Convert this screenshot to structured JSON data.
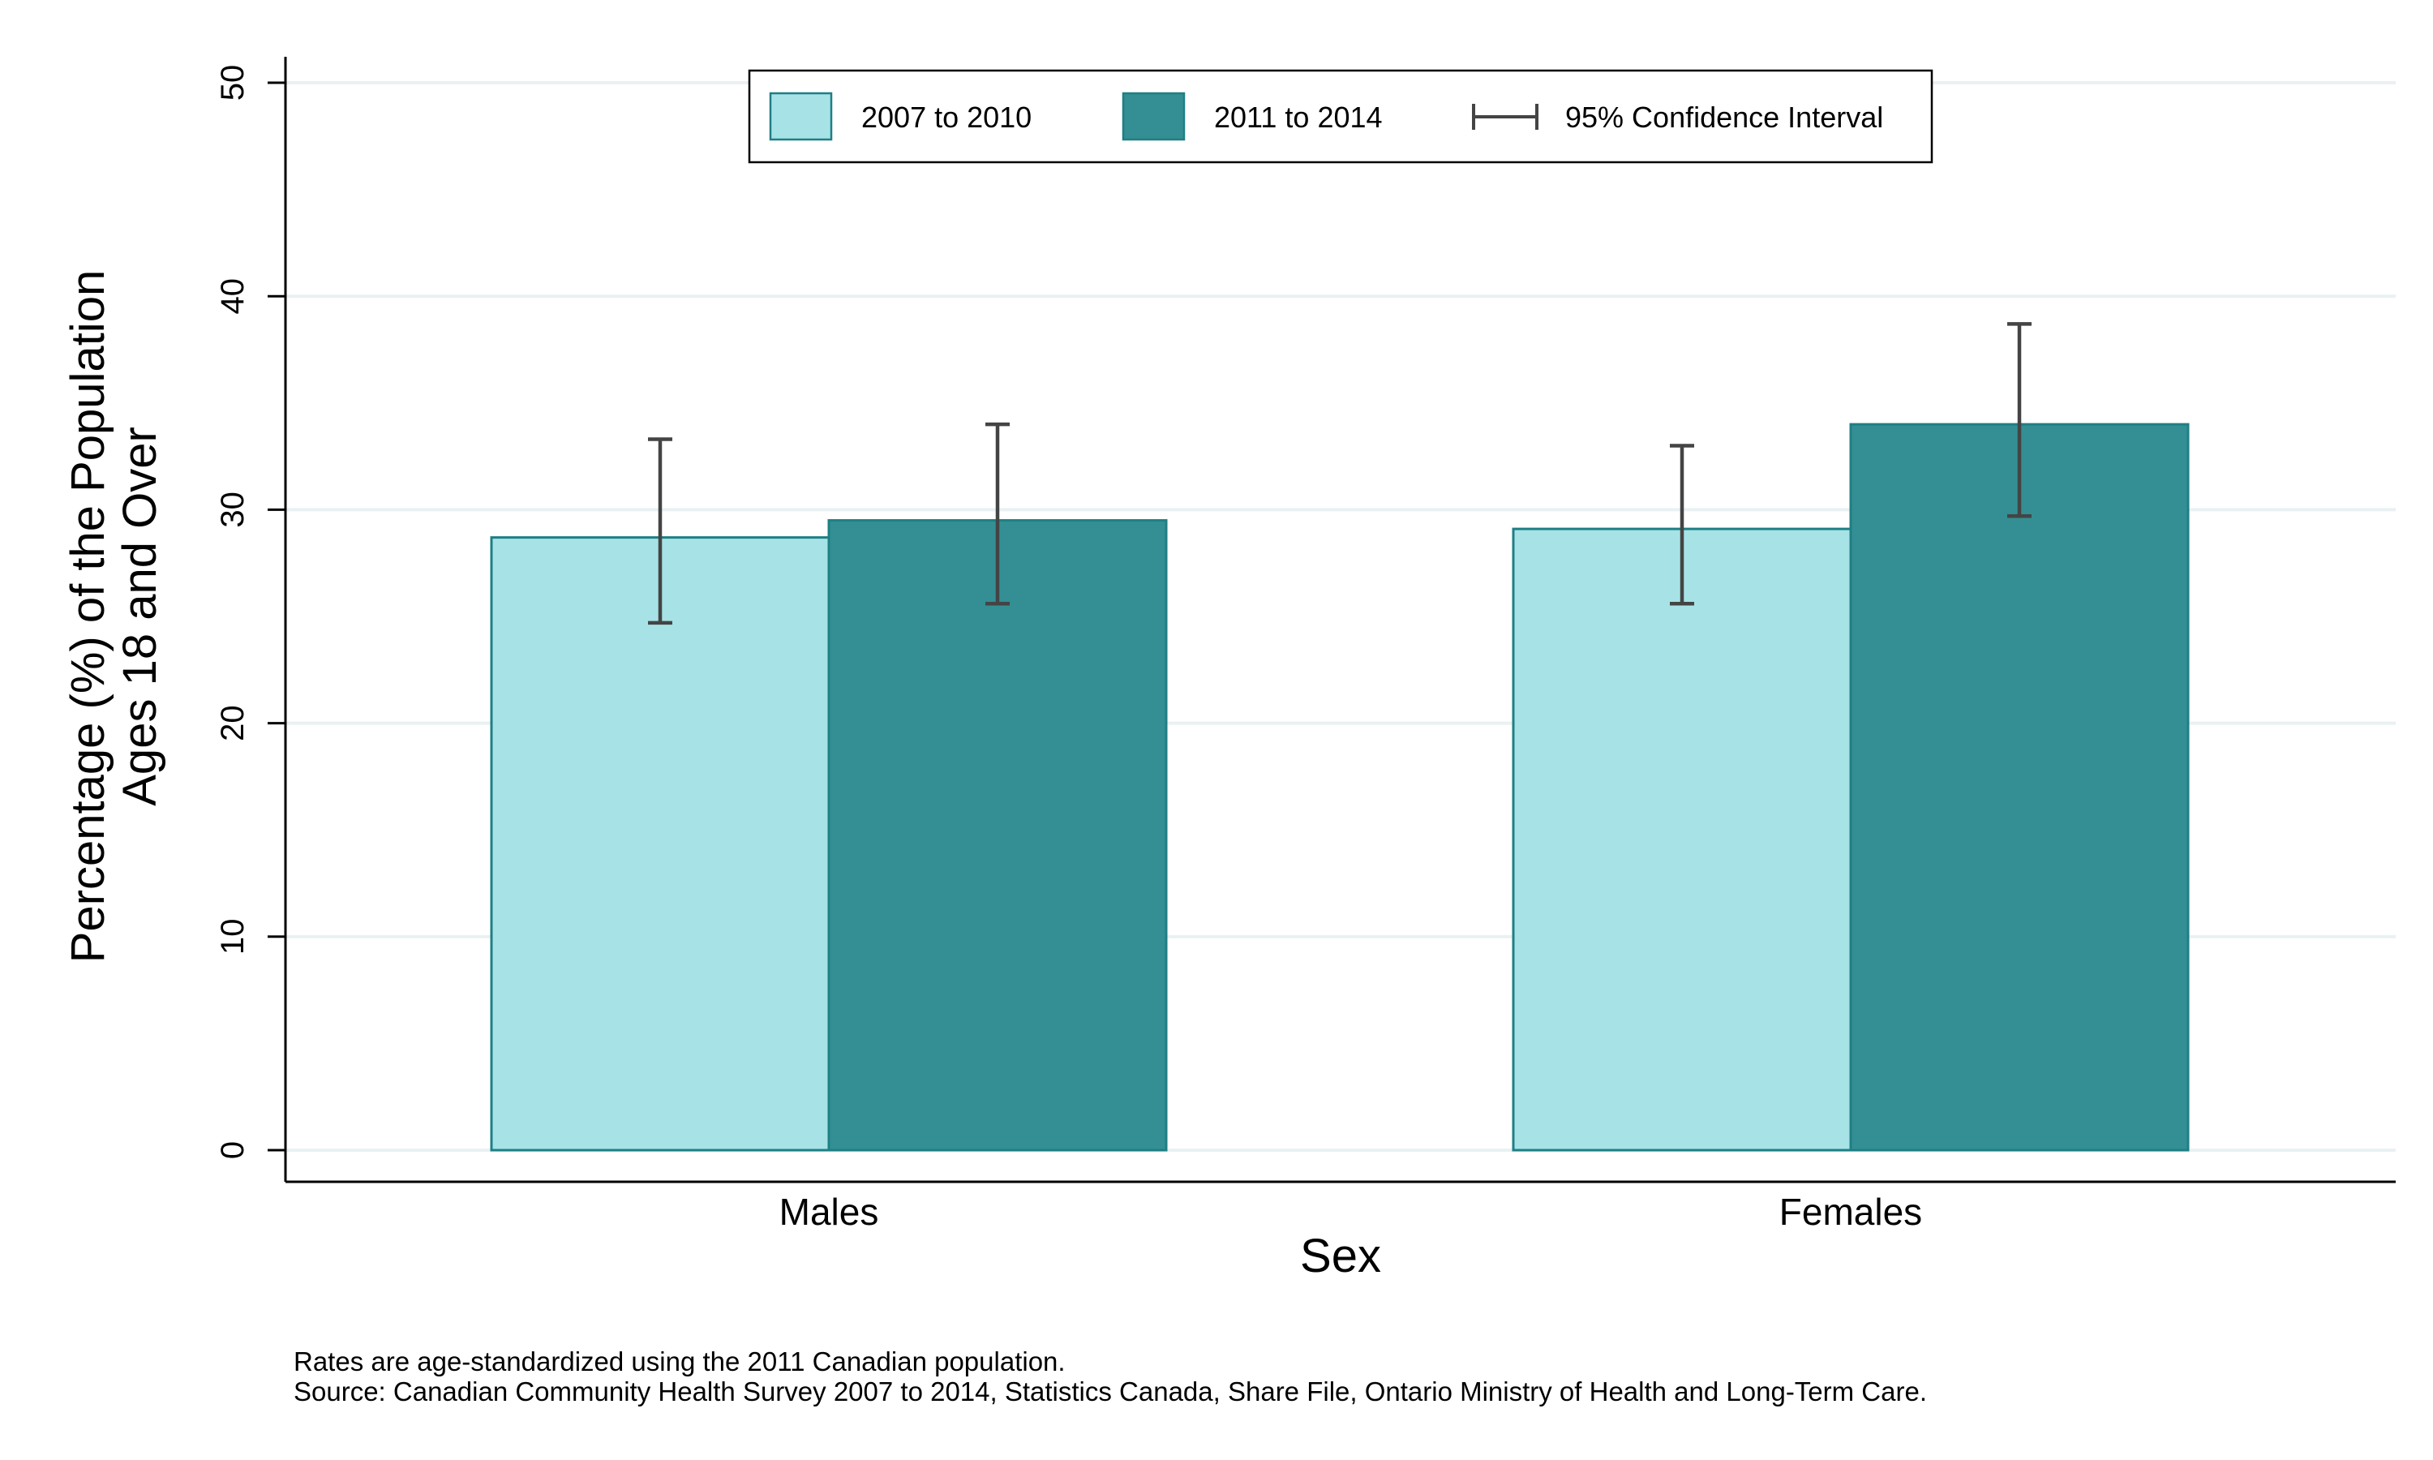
{
  "chart_data": {
    "type": "bar",
    "xlabel": "Sex",
    "ylabel": [
      "Percentage (%) of the Population",
      "Ages 18 and Over"
    ],
    "categories": [
      "Males",
      "Females"
    ],
    "series": [
      {
        "name": "2007 to 2010",
        "color": "#a7e3e6",
        "values": [
          28.7,
          29.1
        ],
        "ci_low": [
          24.7,
          25.6
        ],
        "ci_high": [
          33.3,
          33.0
        ]
      },
      {
        "name": "2011 to 2014",
        "color": "#338f93",
        "values": [
          29.5,
          34.0
        ],
        "ci_low": [
          25.6,
          29.7
        ],
        "ci_high": [
          34.0,
          38.7
        ]
      }
    ],
    "ci_legend_label": "95% Confidence Interval",
    "ylim": [
      0,
      50
    ],
    "yticks": [
      0,
      10,
      20,
      30,
      40,
      50
    ],
    "grid": true,
    "legend_position": "top-center",
    "notes": [
      "Rates are age-standardized using the 2011 Canadian population.",
      "Source: Canadian Community Health Survey 2007 to 2014, Statistics Canada, Share File, Ontario Ministry of Health and Long-Term Care."
    ]
  }
}
